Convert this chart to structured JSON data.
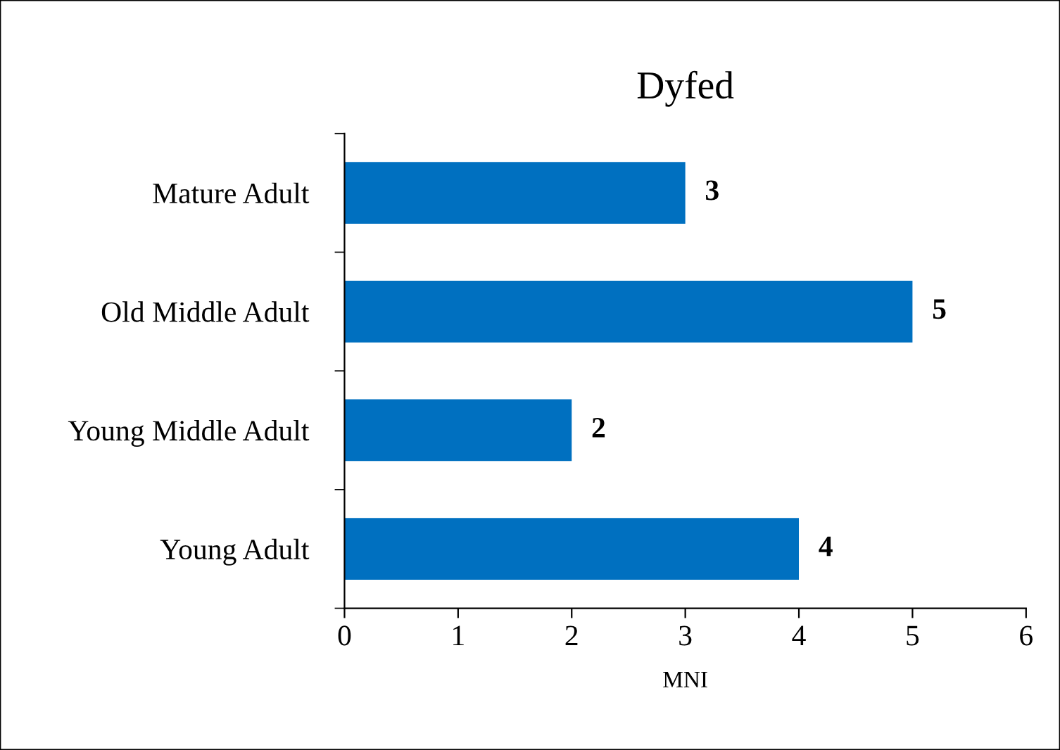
{
  "chart_data": {
    "type": "bar",
    "orientation": "horizontal",
    "title": "Dyfed",
    "xlabel": "MNI",
    "categories": [
      "Mature Adult",
      "Old Middle Adult",
      "Young Middle Adult",
      "Young Adult"
    ],
    "values": [
      3,
      5,
      2,
      4
    ],
    "color": "#0070c0",
    "xlim": [
      0,
      6
    ],
    "xticks": [
      0,
      1,
      2,
      3,
      4,
      5,
      6
    ],
    "grid": false,
    "data_labels": true
  }
}
